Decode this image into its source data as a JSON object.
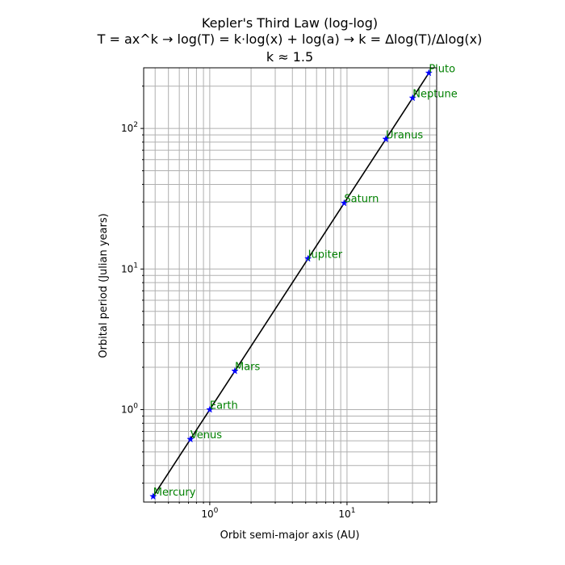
{
  "chart_data": {
    "type": "line",
    "title_lines": [
      "Kepler's Third Law (log-log)",
      "T = ax^k → log(T) = k·log(x) + log(a) → k = Δlog(T)/Δlog(x)",
      "k ≈ 1.5"
    ],
    "xlabel": "Orbit semi-major axis (AU)",
    "ylabel": "Orbital period (Julian years)",
    "xscale": "log",
    "yscale": "log",
    "xlim": [
      0.33,
      45
    ],
    "ylim": [
      0.22,
      270
    ],
    "grid": "both (major and minor)",
    "legend": "none",
    "x_ticks": [
      {
        "value": 1,
        "base": "10",
        "exp": "0"
      },
      {
        "value": 10,
        "base": "10",
        "exp": "1"
      }
    ],
    "y_ticks": [
      {
        "value": 1,
        "base": "10",
        "exp": "0"
      },
      {
        "value": 10,
        "base": "10",
        "exp": "1"
      },
      {
        "value": 100,
        "base": "10",
        "exp": "2"
      }
    ],
    "series": [
      {
        "line_color": "#000000",
        "marker": "star",
        "marker_color": "#0000ff",
        "label_color": "#008000",
        "points": [
          {
            "label": "Mercury",
            "x": 0.387,
            "y": 0.241
          },
          {
            "label": "Venus",
            "x": 0.723,
            "y": 0.615
          },
          {
            "label": "Earth",
            "x": 1.0,
            "y": 1.0
          },
          {
            "label": "Mars",
            "x": 1.524,
            "y": 1.881
          },
          {
            "label": "Jupiter",
            "x": 5.203,
            "y": 11.86
          },
          {
            "label": "Saturn",
            "x": 9.537,
            "y": 29.45
          },
          {
            "label": "Uranus",
            "x": 19.19,
            "y": 84.02
          },
          {
            "label": "Neptune",
            "x": 30.07,
            "y": 164.8
          },
          {
            "label": "Pluto",
            "x": 39.48,
            "y": 248.0
          }
        ]
      }
    ]
  }
}
